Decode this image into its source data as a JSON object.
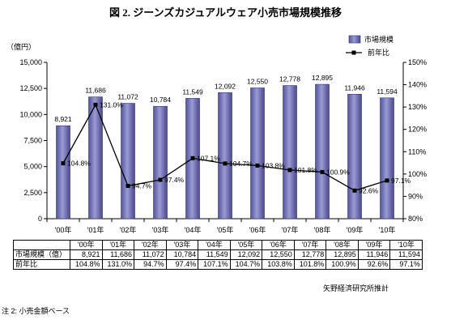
{
  "chart_data": {
    "type": "bar",
    "title": "図 2. ジーンズカジュアルウェア小売市場規模推移",
    "categories": [
      "'00年",
      "'01年",
      "'02年",
      "'03年",
      "'04年",
      "'05年",
      "'06年",
      "'07年",
      "'08年",
      "'09年",
      "'10年"
    ],
    "series": [
      {
        "name": "市場規模",
        "type": "bar",
        "axis": "left",
        "color": "#9a9ad4",
        "values": [
          8921,
          11686,
          11072,
          10784,
          11549,
          12092,
          12550,
          12778,
          12895,
          11946,
          11594
        ],
        "labels": [
          "8,921",
          "11,686",
          "11,072",
          "10,784",
          "11,549",
          "12,092",
          "12,550",
          "12,778",
          "12,895",
          "11,946",
          "11,594"
        ]
      },
      {
        "name": "前年比",
        "type": "line",
        "axis": "right",
        "color": "#000000",
        "marker": "square",
        "values": [
          104.8,
          131.0,
          94.7,
          97.4,
          107.1,
          104.7,
          103.8,
          101.8,
          100.9,
          92.6,
          97.1
        ],
        "labels": [
          "104.8%",
          "131.0%",
          "94.7%",
          "97.4%",
          "107.1%",
          "104.7%",
          "103.8%",
          "101.8%",
          "100.9%",
          "92.6%",
          "97.1%"
        ]
      }
    ],
    "ylabel": "（億円）",
    "ylim": [
      0,
      15000
    ],
    "yticks": [
      "0",
      "2,500",
      "5,000",
      "7,500",
      "10,000",
      "12,500",
      "15,000"
    ],
    "y2lim": [
      80,
      150
    ],
    "y2ticks": [
      "80%",
      "90%",
      "100%",
      "110%",
      "120%",
      "130%",
      "140%",
      "150%"
    ],
    "grid": false,
    "legend": "top-right"
  },
  "table": {
    "header": [
      "",
      "'00年",
      "'01年",
      "'02年",
      "'03年",
      "'04年",
      "'05年",
      "'06年",
      "'07年",
      "'08年",
      "'09年",
      "'10年"
    ],
    "rows": [
      {
        "label": "市場規模（億）",
        "cells": [
          "8,921",
          "11,686",
          "11,072",
          "10,784",
          "11,549",
          "12,092",
          "12,550",
          "12,778",
          "12,895",
          "11,946",
          "11,594"
        ]
      },
      {
        "label": "前年比",
        "cells": [
          "104.8%",
          "131.0%",
          "94.7%",
          "97.4%",
          "107.1%",
          "104.7%",
          "103.8%",
          "101.8%",
          "100.9%",
          "92.6%",
          "97.1%"
        ]
      }
    ]
  },
  "source": "矢野経済研究所推計",
  "note": "注 2: 小売金額ベース"
}
